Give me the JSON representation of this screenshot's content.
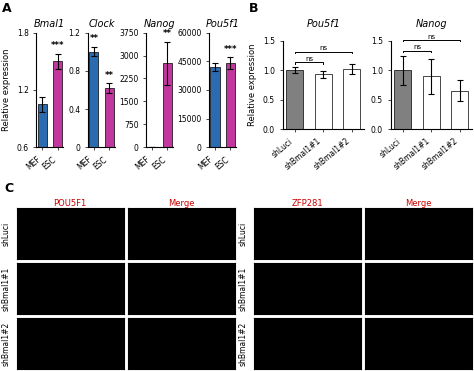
{
  "chart_data": [
    {
      "type": "bar",
      "title": "Bmal1",
      "annotations": [
        {
          "text": "A"
        },
        {
          "text": "***",
          "category": "ESC"
        }
      ],
      "y_label": "Relative expression",
      "categories": [
        "MEF",
        "ESC"
      ],
      "values": [
        1.05,
        1.5
      ],
      "errors": [
        0.08,
        0.08
      ],
      "colors": [
        "#2b6cb0",
        "#c0389e"
      ],
      "ylim": [
        0.6,
        1.8
      ],
      "yticks": [
        0.6,
        1.2,
        1.8
      ]
    },
    {
      "type": "bar",
      "title": "Clock",
      "annotations": [
        {
          "text": "**",
          "category": "MEF"
        },
        {
          "text": "**",
          "category": "ESC"
        }
      ],
      "categories": [
        "MEF",
        "ESC"
      ],
      "values": [
        1.0,
        0.62
      ],
      "errors": [
        0.05,
        0.05
      ],
      "colors": [
        "#2b6cb0",
        "#c0389e"
      ],
      "ylim": [
        0,
        1.2
      ],
      "yticks": [
        0,
        0.4,
        0.8,
        1.2
      ]
    },
    {
      "type": "bar",
      "title": "Nanog",
      "annotations": [
        {
          "text": "**",
          "category": "ESC"
        }
      ],
      "categories": [
        "MEF",
        "ESC"
      ],
      "values": [
        0,
        2750
      ],
      "errors": [
        0,
        700
      ],
      "colors": [
        "#2b6cb0",
        "#c0389e"
      ],
      "ylim": [
        0,
        3750
      ],
      "yticks": [
        0,
        750,
        1500,
        2250,
        3000,
        3750
      ]
    },
    {
      "type": "bar",
      "title": "Pou5f1",
      "annotations": [
        {
          "text": "***",
          "category": "ESC"
        }
      ],
      "categories": [
        "MEF",
        "ESC"
      ],
      "values": [
        42000,
        44000
      ],
      "errors": [
        2000,
        3000
      ],
      "colors": [
        "#2b6cb0",
        "#c0389e"
      ],
      "ylim": [
        0,
        60000
      ],
      "yticks": [
        0,
        15000,
        30000,
        45000,
        60000
      ]
    },
    {
      "type": "bar",
      "title": "Pou5f1",
      "annotations": [
        {
          "text": "B"
        }
      ],
      "y_label": "Relative expression",
      "categories": [
        "shLuci",
        "shBmal1#1",
        "shBmal1#2"
      ],
      "values": [
        1.0,
        0.93,
        1.02
      ],
      "errors": [
        0.05,
        0.06,
        0.08
      ],
      "colors": [
        "#808080",
        "#ffffff",
        "#ffffff"
      ],
      "ylim": [
        0.0,
        1.5
      ],
      "yticks": [
        {
          "value": 0.0,
          "label": "0.0"
        },
        0.5,
        {
          "value": 1.0,
          "label": "1.0"
        },
        1.5
      ],
      "brackets": [
        {
          "text": "ns",
          "from": 0,
          "to": 1
        },
        {
          "text": "ns",
          "from": 0,
          "to": 2
        }
      ]
    },
    {
      "type": "bar",
      "title": "Nanog",
      "categories": [
        "shLuci",
        "shBmal1#1",
        "shBmal1#2"
      ],
      "values": [
        1.0,
        0.9,
        0.65
      ],
      "errors": [
        0.25,
        0.3,
        0.18
      ],
      "colors": [
        "#808080",
        "#ffffff",
        "#ffffff"
      ],
      "ylim": [
        0.0,
        1.5
      ],
      "yticks": [
        {
          "value": 0.0,
          "label": "0.0"
        },
        0.5,
        {
          "value": 1.0,
          "label": "1.0"
        },
        1.5
      ],
      "brackets": [
        {
          "text": "ns",
          "from": 0,
          "to": 1
        },
        {
          "text": "ns",
          "from": 0,
          "to": 2
        }
      ]
    },
    {
      "type": "image",
      "annotations": [
        {
          "text": "C"
        }
      ],
      "categories": [
        "POU5F1",
        "Merge",
        "ZFP281",
        "Merge"
      ],
      "rows": [
        "shLuci",
        "shBmal1#1",
        "shBmal1#2"
      ],
      "color": "#cc0000",
      "bg_color": "#000000"
    }
  ]
}
